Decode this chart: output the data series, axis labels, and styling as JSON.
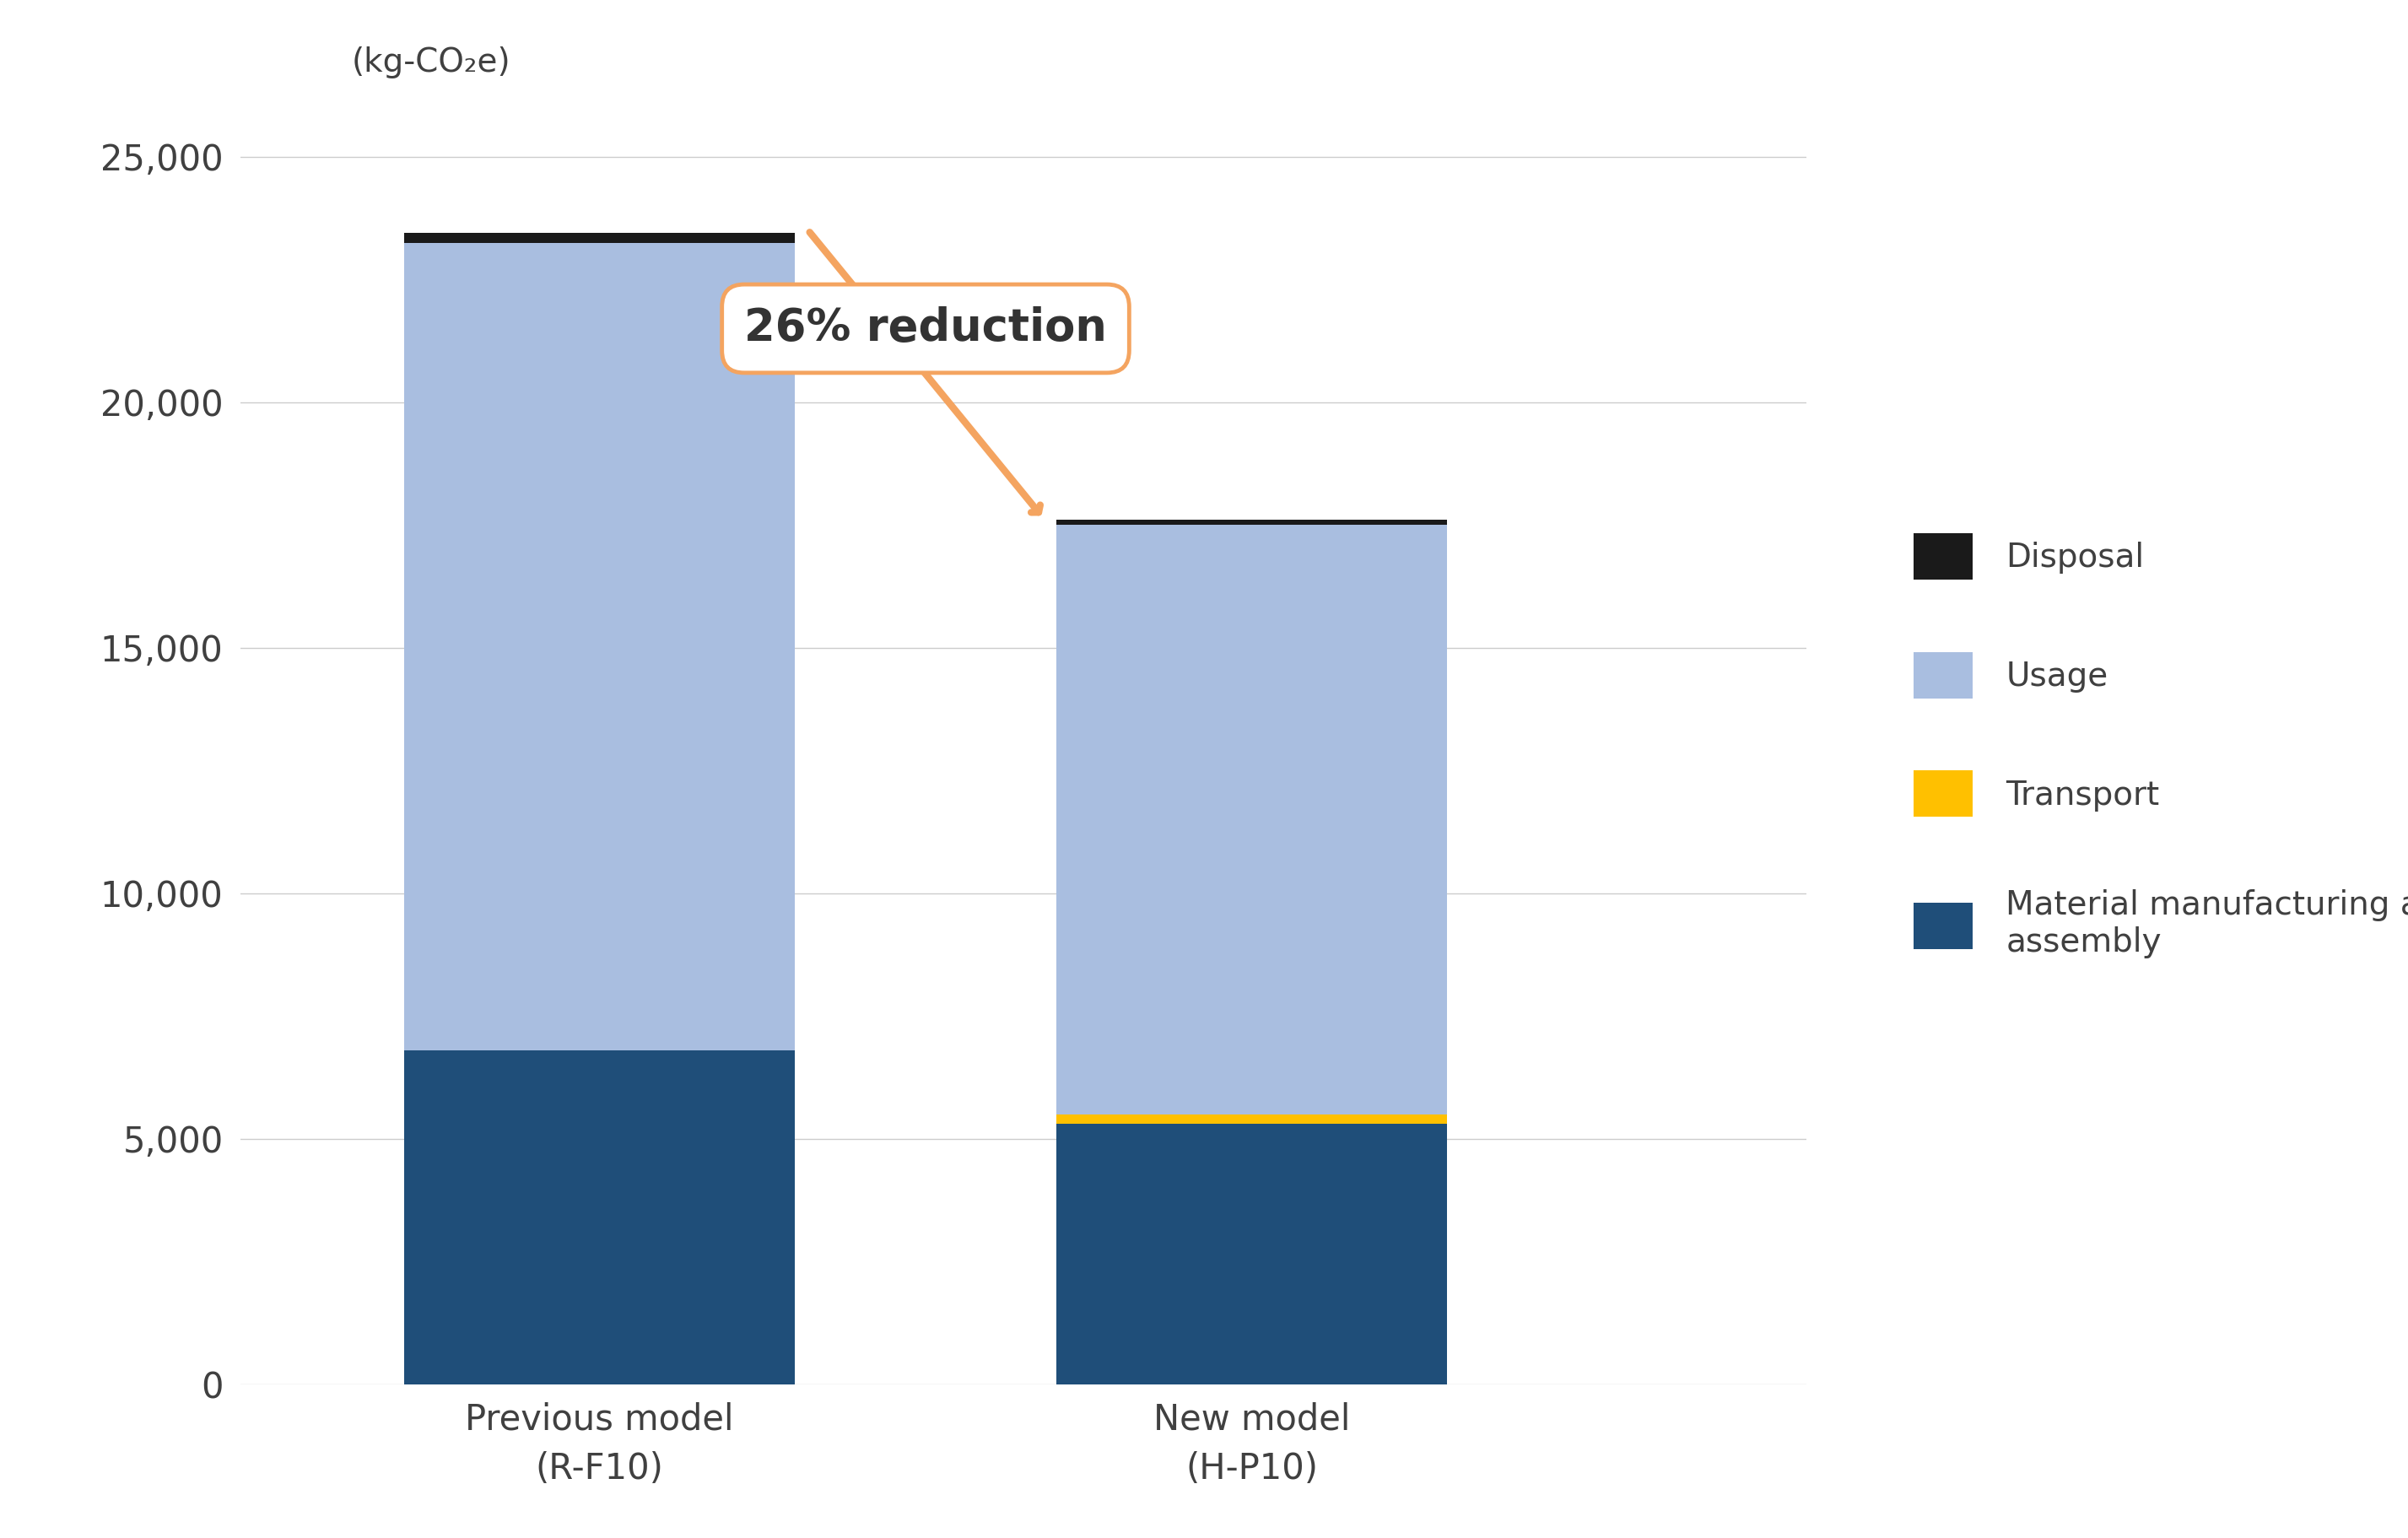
{
  "categories": [
    "Previous model\n(R-F10)",
    "New model\n(H-P10)"
  ],
  "material": [
    6800,
    5300
  ],
  "transport": [
    0,
    200
  ],
  "usage": [
    16450,
    12000
  ],
  "disposal": [
    200,
    100
  ],
  "colors": {
    "material": "#1F4E79",
    "transport": "#FFC000",
    "usage": "#A9BEE0",
    "disposal": "#1a1a1a"
  },
  "ylabel": "(kg-CO₂e)",
  "ylim": [
    0,
    26000
  ],
  "yticks": [
    0,
    5000,
    10000,
    15000,
    20000,
    25000
  ],
  "annotation_text": "26% reduction",
  "arrow_color": "#F4A460",
  "bar_width": 0.6,
  "x_positions": [
    0,
    1
  ],
  "legend_labels": [
    "Disposal",
    "Usage",
    "Transport",
    "Material manufacturing and\nassembly"
  ],
  "legend_colors": [
    "#1a1a1a",
    "#A9BEE0",
    "#FFC000",
    "#1F4E79"
  ],
  "background_color": "#ffffff",
  "text_color": "#404040",
  "grid_color": "#CCCCCC"
}
